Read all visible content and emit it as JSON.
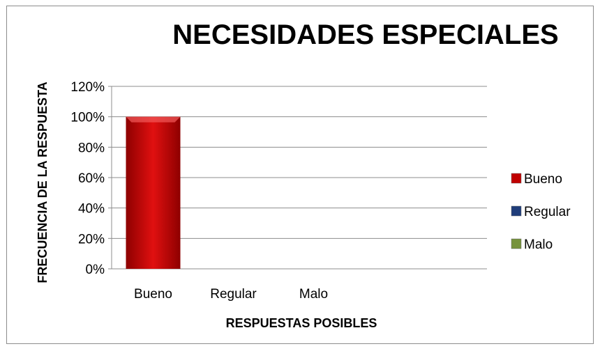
{
  "chart_data": {
    "type": "bar",
    "title": "NECESIDADES ESPECIALES",
    "xlabel": "RESPUESTAS POSIBLES",
    "ylabel": "FRECUENCIA DE LA RESPUESTA",
    "categories": [
      "Bueno",
      "Regular",
      "Malo"
    ],
    "values": [
      100,
      0,
      0
    ],
    "value_format": "percent",
    "ylim": [
      0,
      120
    ],
    "yticks": [
      "0%",
      "20%",
      "40%",
      "60%",
      "80%",
      "100%",
      "120%"
    ],
    "grid": true,
    "legend_position": "right",
    "legend": [
      {
        "label": "Bueno",
        "color": "#c00000"
      },
      {
        "label": "Regular",
        "color": "#1f3d7a"
      },
      {
        "label": "Malo",
        "color": "#76923c"
      }
    ],
    "bar_colors": [
      "#c00000",
      "#1f3d7a",
      "#76923c"
    ]
  }
}
